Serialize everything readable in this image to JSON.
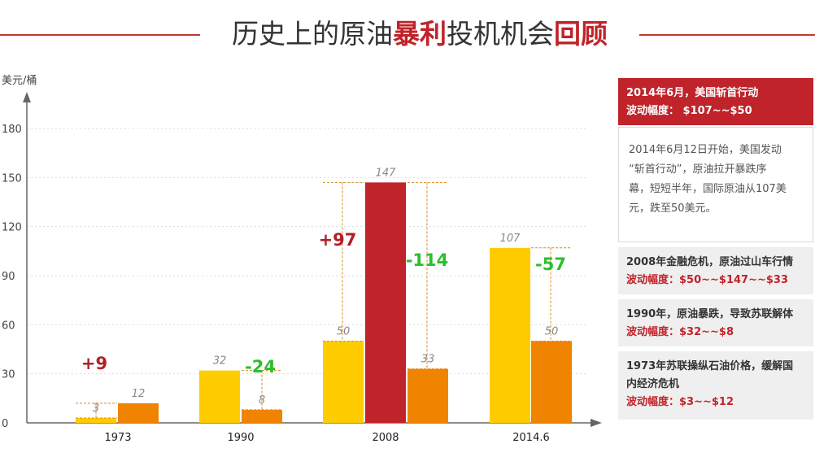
{
  "title": {
    "part1": "历史上的原油",
    "highlight1": "暴利",
    "part2": "投机机会",
    "highlight2": "回顾"
  },
  "colors": {
    "accent_red": "#c0232a",
    "bar_yellow": "#ffcc00",
    "bar_orange": "#f08300",
    "bar_red": "#c0232a",
    "up_text": "#b21f24",
    "down_text": "#2dbe2d",
    "bracket": "#e08a1e"
  },
  "chart_data": {
    "type": "bar",
    "ylabel": "美元/桶",
    "yticks": [
      0,
      30,
      60,
      90,
      120,
      150,
      180
    ],
    "ylim": [
      0,
      190
    ],
    "grid": true,
    "categories": [
      "1973",
      "1990",
      "2008",
      "2014.6"
    ],
    "bars": [
      {
        "category": "1973",
        "value": 3,
        "label": "3",
        "color": "yellow"
      },
      {
        "category": "1973",
        "value": 12,
        "label": "12",
        "color": "orange"
      },
      {
        "category": "1990",
        "value": 32,
        "label": "32",
        "color": "yellow"
      },
      {
        "category": "1990",
        "value": 8,
        "label": "8",
        "color": "orange"
      },
      {
        "category": "2008",
        "value": 50,
        "label": "50",
        "color": "yellow"
      },
      {
        "category": "2008",
        "value": 147,
        "label": "147",
        "color": "red"
      },
      {
        "category": "2008",
        "value": 33,
        "label": "33",
        "color": "orange"
      },
      {
        "category": "2014.6",
        "value": 107,
        "label": "107",
        "color": "yellow"
      },
      {
        "category": "2014.6",
        "value": 50,
        "label": "50",
        "color": "orange"
      }
    ],
    "changes": [
      {
        "label": "+9",
        "from": 3,
        "to": 12,
        "direction": "up"
      },
      {
        "label": "-24",
        "from": 32,
        "to": 8,
        "direction": "down"
      },
      {
        "label": "+97",
        "from": 50,
        "to": 147,
        "direction": "up"
      },
      {
        "label": "-114",
        "from": 147,
        "to": 33,
        "direction": "down"
      },
      {
        "label": "-57",
        "from": 107,
        "to": 50,
        "direction": "down"
      }
    ]
  },
  "panel": {
    "head_line1": "2014年6月，美国斩首行动",
    "head_line2": "波动幅度： $107~~$50",
    "body_lines": [
      "2014年6月12日开始，美国发动",
      "“斩首行动”，原油拉开暴跌序",
      "幕，短短半年，国际原油从107美",
      "元，跌至50美元。"
    ],
    "cards": [
      {
        "line1": "2008年金融危机，原油过山车行情",
        "range": "波动幅度：$50~~$147~~$33"
      },
      {
        "line1": "1990年，原油暴跌，导致苏联解体",
        "range": "波动幅度：$32~~$8"
      },
      {
        "line1": "1973年苏联操纵石油价格，缓解国",
        "line2": "内经济危机",
        "range": "波动幅度：$3~~$12"
      }
    ]
  }
}
